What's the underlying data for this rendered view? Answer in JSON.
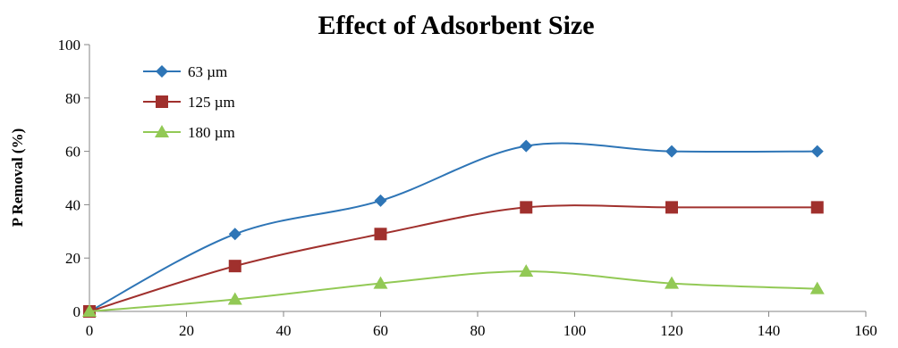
{
  "chart_data": {
    "type": "line",
    "title": "Effect of Adsorbent Size",
    "xlabel": "",
    "ylabel": "P Removal (%)",
    "xlim": [
      0,
      160
    ],
    "ylim": [
      0,
      100
    ],
    "x_ticks": [
      0,
      20,
      40,
      60,
      80,
      100,
      120,
      140,
      160
    ],
    "y_ticks": [
      0,
      20,
      40,
      60,
      80,
      100
    ],
    "grid": false,
    "smoothed": true,
    "legend_position": "top-left",
    "series": [
      {
        "name": "63 µm",
        "color": "#2E75B6",
        "marker": "diamond",
        "x": [
          0,
          30,
          60,
          90,
          120,
          150
        ],
        "y": [
          0,
          29,
          41.5,
          62,
          60,
          60
        ]
      },
      {
        "name": "125 µm",
        "color": "#A0302D",
        "marker": "square",
        "x": [
          0,
          30,
          60,
          90,
          120,
          150
        ],
        "y": [
          0,
          17,
          29,
          39,
          39,
          39
        ]
      },
      {
        "name": "180 µm",
        "color": "#92C955",
        "marker": "triangle",
        "x": [
          0,
          30,
          60,
          90,
          120,
          150
        ],
        "y": [
          0,
          4.5,
          10.5,
          15,
          10.5,
          8.5
        ]
      }
    ]
  }
}
